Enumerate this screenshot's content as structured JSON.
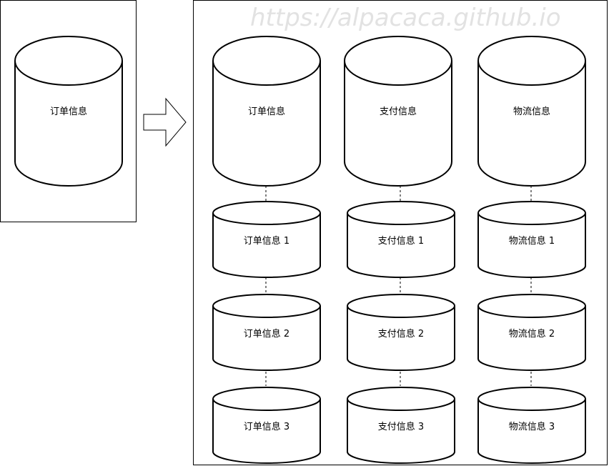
{
  "watermark": "https://alpacaca.github.io",
  "source": {
    "label": "订单信息"
  },
  "columns": [
    {
      "top": "订单信息",
      "shards": [
        "订单信息 1",
        "订单信息 2",
        "订单信息 3"
      ]
    },
    {
      "top": "支付信息",
      "shards": [
        "支付信息 1",
        "支付信息 2",
        "支付信息 3"
      ]
    },
    {
      "top": "物流信息",
      "shards": [
        "物流信息 1",
        "物流信息 2",
        "物流信息 3"
      ]
    }
  ]
}
